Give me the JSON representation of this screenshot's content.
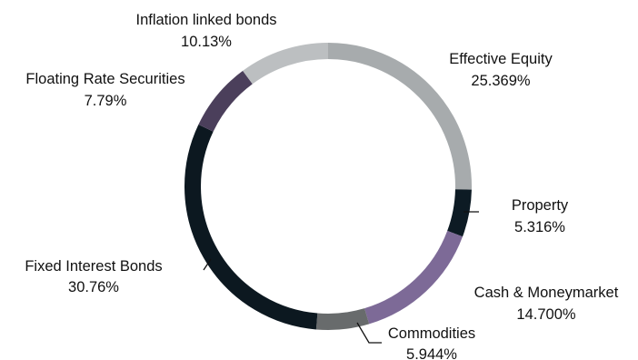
{
  "chart_data": {
    "type": "donut",
    "title": "",
    "legend": "none",
    "start_angle_deg": 0,
    "direction": "clockwise",
    "slices": [
      {
        "label": "Effective Equity",
        "value_label": "25.369%",
        "value": 25.369,
        "color": "#a7abad"
      },
      {
        "label": "Property",
        "value_label": "5.316%",
        "value": 5.316,
        "color": "#0d1b24"
      },
      {
        "label": "Cash & Moneymarket",
        "value_label": "14.700%",
        "value": 14.7,
        "color": "#7d6a97"
      },
      {
        "label": "Commodities",
        "value_label": "5.944%",
        "value": 5.944,
        "color": "#686b6c"
      },
      {
        "label": "Fixed Interest Bonds",
        "value_label": "30.76%",
        "value": 30.76,
        "color": "#0c1820"
      },
      {
        "label": "Floating Rate Securities",
        "value_label": "7.79%",
        "value": 7.79,
        "color": "#4b3f5b"
      },
      {
        "label": "Inflation linked bonds",
        "value_label": "10.13%",
        "value": 10.13,
        "color": "#bcbfc1"
      }
    ]
  }
}
